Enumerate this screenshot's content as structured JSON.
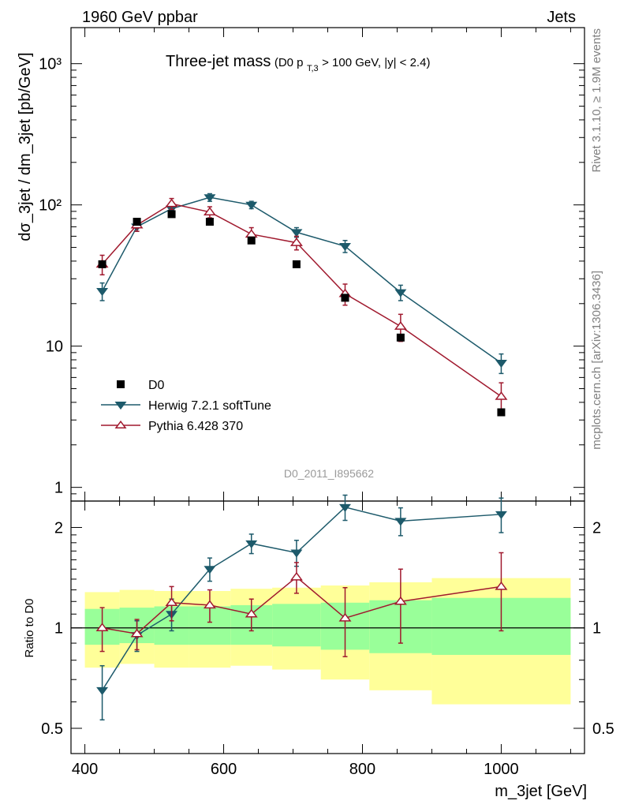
{
  "header": {
    "left": "1960 GeV ppbar",
    "right": "Jets"
  },
  "plot": {
    "title_main": "Three-jet mass",
    "title_sub_prefix": "(D0 p",
    "title_sub_subscript": "T,3",
    "title_sub_suffix": " > 100 GeV, |y| < 2.4)",
    "watermark": "D0_2011_I895662",
    "side_top": "Rivet 3.1.10, ≥ 1.9M events",
    "side_bottom": "mcplots.cern.ch [arXiv:1306.3436]"
  },
  "colors": {
    "data": "#000000",
    "herwig": "#1d5a6b",
    "pythia": "#a0192e",
    "band_inner": "#99ff99",
    "band_outer": "#ffff99"
  },
  "chart_data": [
    {
      "type": "line",
      "title": "Three-jet mass (D0 p_T,3 > 100 GeV, |y| < 2.4)",
      "xlabel": "m_3jet [GeV]",
      "ylabel": "dσ_3jet / dm_3jet [pb/GeV]",
      "yscale": "log",
      "xlim": [
        380,
        1120
      ],
      "ylim": [
        0.8,
        1800
      ],
      "x_ticks": [
        "400",
        "600",
        "800",
        "1000"
      ],
      "y_ticks": [
        "1",
        "10",
        "10²",
        "10³"
      ],
      "legend_position": "bottom-left",
      "series": [
        {
          "name": "D0",
          "marker": "square",
          "x": [
            425,
            475,
            525,
            580,
            640,
            705,
            775,
            855,
            1000
          ],
          "y": [
            38,
            76,
            86,
            76,
            56,
            38,
            22,
            11.5,
            3.4
          ],
          "err": [
            0,
            0,
            0,
            0,
            0,
            0,
            0,
            0,
            0
          ]
        },
        {
          "name": "Herwig 7.2.1 softTune",
          "marker": "triangle-down",
          "x": [
            425,
            475,
            525,
            580,
            640,
            705,
            775,
            855,
            1000
          ],
          "y": [
            24.5,
            70,
            94,
            113,
            100,
            64,
            51,
            24,
            7.6
          ],
          "err": [
            3.5,
            5,
            6,
            7,
            6,
            5,
            5,
            3,
            1.2
          ]
        },
        {
          "name": "Pythia 6.428 370",
          "marker": "triangle-up",
          "x": [
            425,
            475,
            525,
            580,
            640,
            705,
            775,
            855,
            1000
          ],
          "y": [
            38,
            72,
            102,
            89,
            62,
            54,
            23.5,
            13.8,
            4.4
          ],
          "err": [
            6,
            7,
            9,
            8,
            7,
            6,
            4,
            3,
            1.1
          ]
        }
      ]
    },
    {
      "type": "line",
      "title": "",
      "xlabel": "m_3jet [GeV]",
      "ylabel": "Ratio to D0",
      "yscale": "log",
      "xlim": [
        380,
        1120
      ],
      "ylim": [
        0.42,
        2.4
      ],
      "x_ticks": [
        "400",
        "600",
        "800",
        "1000"
      ],
      "y_ticks": [
        "0.5",
        "1",
        "2"
      ],
      "bands": {
        "edges": [
          400,
          450,
          500,
          550,
          610,
          670,
          740,
          810,
          900,
          1100
        ],
        "inner_lo": [
          0.89,
          0.9,
          0.89,
          0.89,
          0.89,
          0.88,
          0.86,
          0.84,
          0.83
        ],
        "inner_hi": [
          1.14,
          1.15,
          1.16,
          1.16,
          1.17,
          1.18,
          1.19,
          1.21,
          1.23
        ],
        "outer_lo": [
          0.76,
          0.78,
          0.76,
          0.76,
          0.77,
          0.75,
          0.7,
          0.65,
          0.59
        ],
        "outer_hi": [
          1.28,
          1.3,
          1.29,
          1.29,
          1.31,
          1.32,
          1.34,
          1.37,
          1.41
        ]
      },
      "series": [
        {
          "name": "Herwig 7.2.1 softTune",
          "marker": "triangle-down",
          "x": [
            425,
            475,
            525,
            580,
            640,
            705,
            775,
            855,
            1000
          ],
          "y": [
            0.65,
            0.95,
            1.1,
            1.5,
            1.79,
            1.68,
            2.3,
            2.09,
            2.19
          ],
          "err": [
            0.12,
            0.1,
            0.12,
            0.12,
            0.12,
            0.15,
            0.2,
            0.2,
            0.26
          ]
        },
        {
          "name": "Pythia 6.428 370",
          "marker": "triangle-up",
          "x": [
            425,
            475,
            525,
            580,
            640,
            705,
            775,
            855,
            1000
          ],
          "y": [
            1.0,
            0.96,
            1.19,
            1.17,
            1.1,
            1.42,
            1.07,
            1.2,
            1.33
          ],
          "err": [
            0.15,
            0.1,
            0.14,
            0.13,
            0.12,
            0.15,
            0.25,
            0.3,
            0.35
          ]
        }
      ]
    }
  ]
}
